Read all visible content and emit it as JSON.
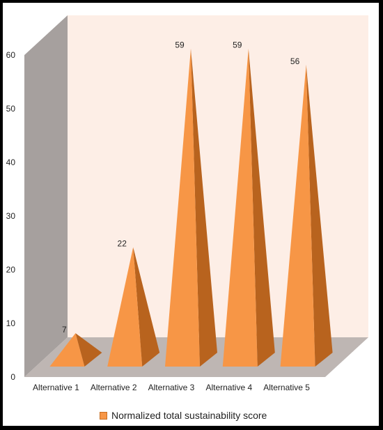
{
  "chart_data": {
    "type": "bar",
    "bar_shape": "pyramid",
    "three_d": true,
    "categories": [
      "Alternative 1",
      "Alternative 2",
      "Alternative 3",
      "Alternative 4",
      "Alternative 5"
    ],
    "series": [
      {
        "name": "Normalized total sustainability score",
        "values": [
          7,
          22,
          59,
          59,
          56
        ],
        "data_labels": [
          "7",
          "22",
          "59",
          "59",
          "56"
        ],
        "color": "#f79646"
      }
    ],
    "y_ticks": [
      "0",
      "10",
      "20",
      "30",
      "40",
      "50",
      "60"
    ],
    "ylim": [
      0,
      60
    ],
    "grid": false,
    "legend_position": "bottom",
    "colors": {
      "back_wall": "#fdeee6",
      "side_wall": "#a6a09e",
      "floor": "#beb6b3",
      "bar_front": "#f79646",
      "bar_side": "#b8631e"
    }
  }
}
